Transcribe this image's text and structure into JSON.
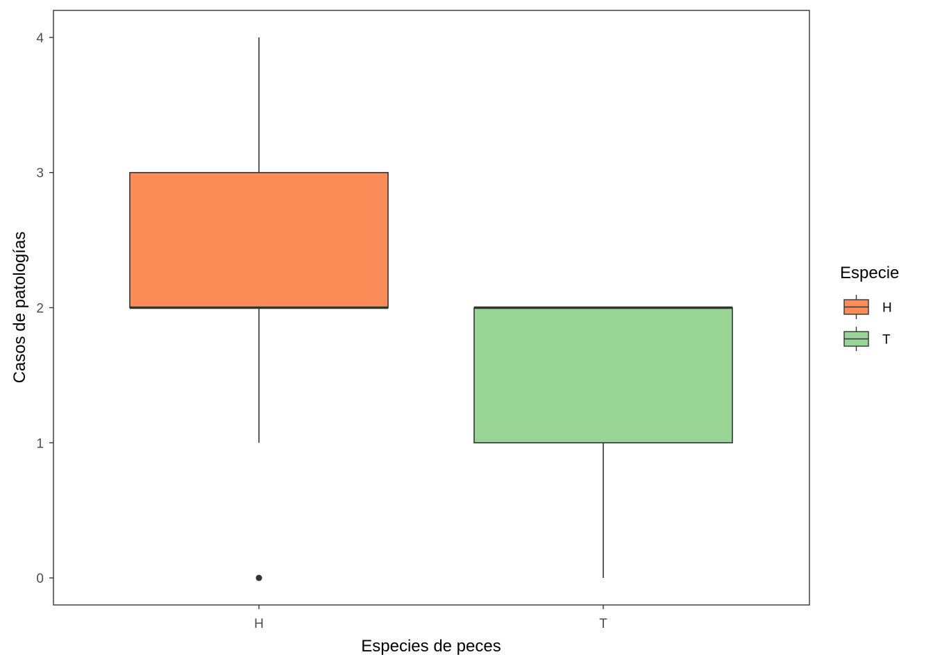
{
  "chart_data": {
    "type": "boxplot",
    "xlabel": "Especies de peces",
    "ylabel": "Casos de patologías",
    "categories": [
      "H",
      "T"
    ],
    "ylim": [
      -0.2,
      4.2
    ],
    "yticks": [
      0,
      1,
      2,
      3,
      4
    ],
    "grid": false,
    "legend": {
      "title": "Especie",
      "placement": "right",
      "entries": [
        "H",
        "T"
      ]
    },
    "boxes": [
      {
        "category": "H",
        "min": 1,
        "q1": 2,
        "median": 2,
        "q3": 3,
        "max": 4,
        "outliers": [
          0
        ],
        "color": "#FC8D59"
      },
      {
        "category": "T",
        "min": 0,
        "q1": 1,
        "median": 2,
        "q3": 2,
        "max": 2,
        "outliers": [],
        "color": "#99D594"
      }
    ]
  }
}
